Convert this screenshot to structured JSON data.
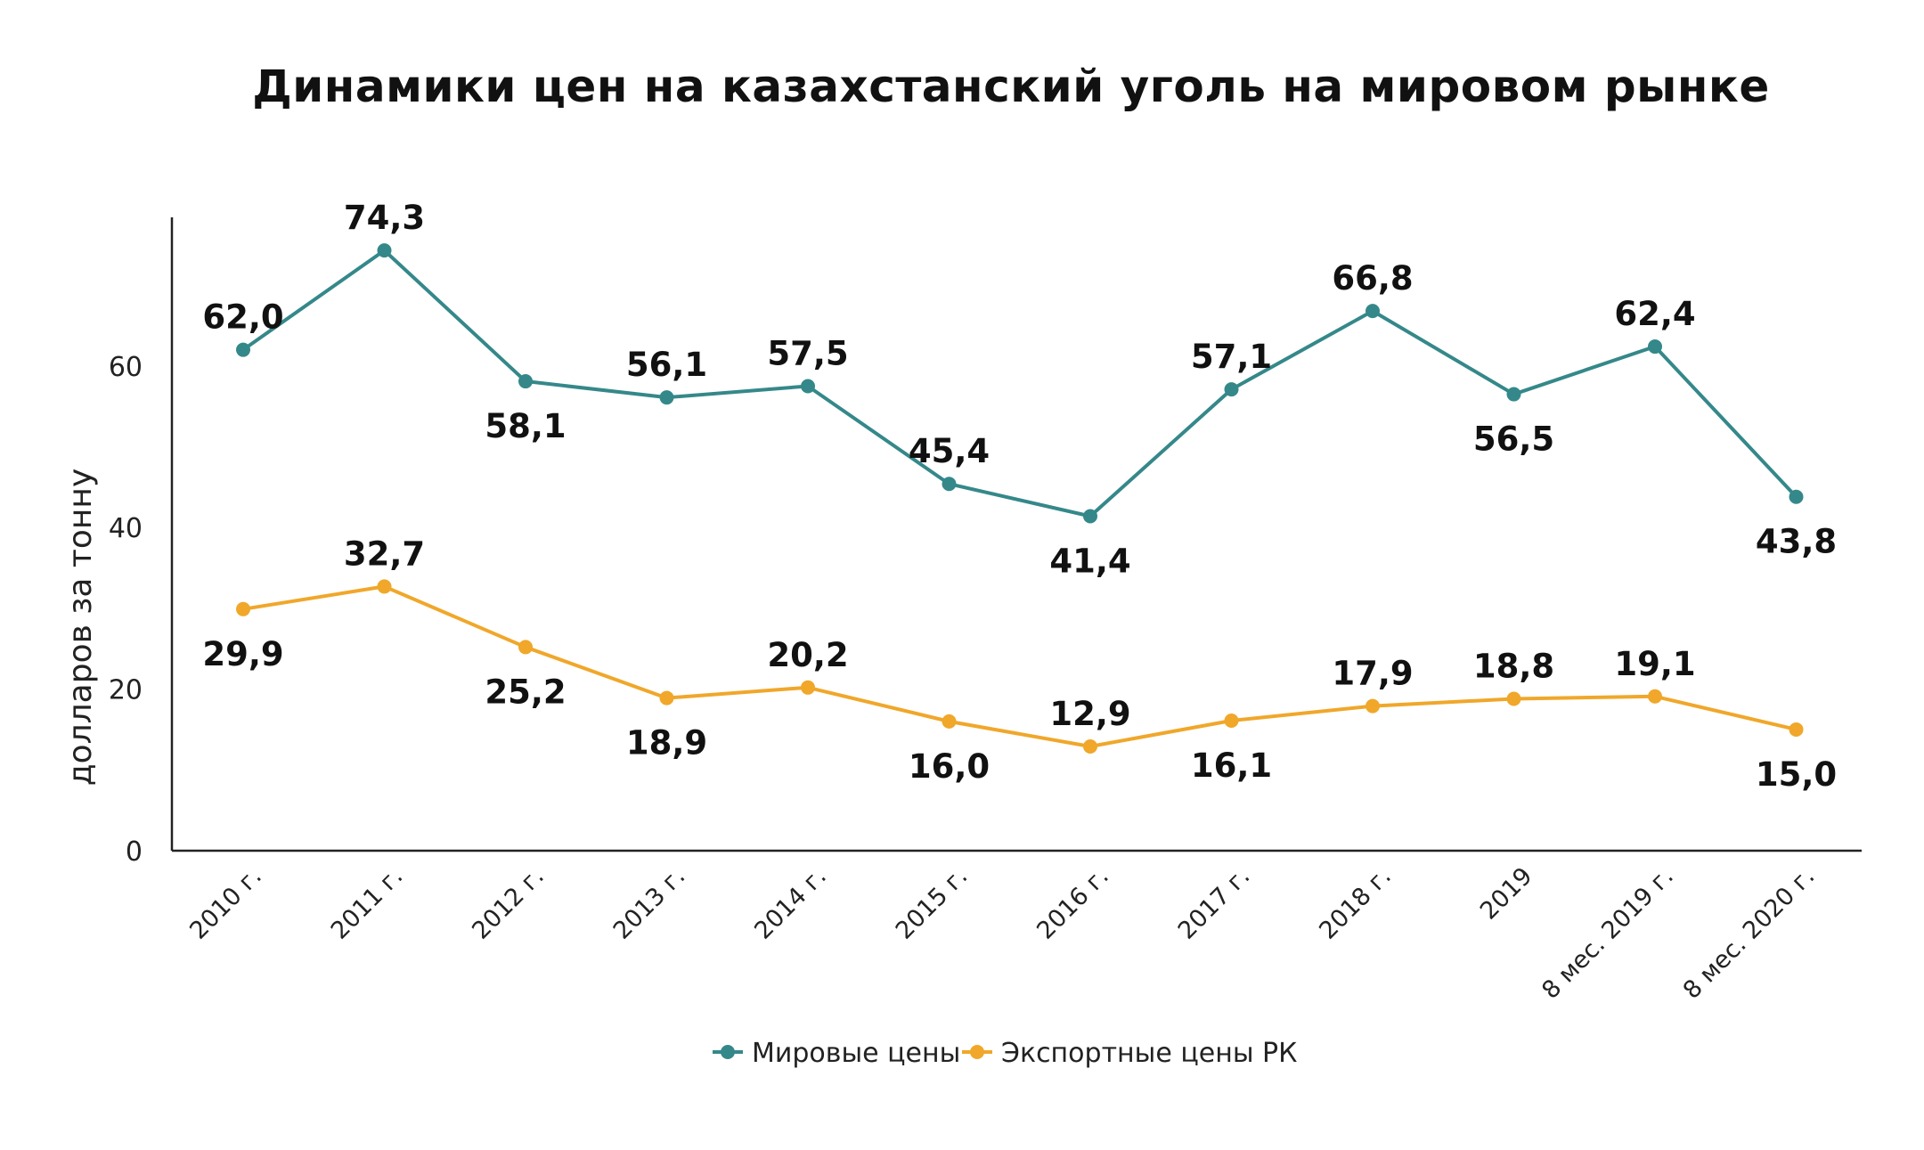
{
  "chart_data": {
    "type": "line",
    "title": "Динамики цен на казахстанский уголь на мировом рынке",
    "ylabel": "долларов за тонну",
    "xlabel": "",
    "ylim": [
      0,
      78
    ],
    "yticks": [
      0,
      20,
      40,
      60
    ],
    "grid": false,
    "legend_position": "bottom",
    "categories": [
      "2010 г.",
      "2011 г.",
      "2012 г.",
      "2013 г.",
      "2014 г.",
      "2015 г.",
      "2016 г.",
      "2017 г.",
      "2018 г.",
      "2019",
      "8 мес. 2019 г.",
      "8 мес. 2020 г."
    ],
    "series": [
      {
        "name": "Мировые цены",
        "color": "#35888a",
        "values": [
          62.0,
          74.3,
          58.1,
          56.1,
          57.5,
          45.4,
          41.4,
          57.1,
          66.8,
          56.5,
          62.4,
          43.8
        ],
        "labels": [
          "62,0",
          "74,3",
          "58,1",
          "56,1",
          "57,5",
          "45,4",
          "41,4",
          "57,1",
          "66,8",
          "56,5",
          "62,4",
          "43,8"
        ],
        "label_pos": [
          "above",
          "above",
          "below",
          "above",
          "above",
          "above",
          "below",
          "above",
          "above",
          "below",
          "above",
          "below"
        ]
      },
      {
        "name": "Экспортные цены РК",
        "color": "#f0a72a",
        "values": [
          29.9,
          32.7,
          25.2,
          18.9,
          20.2,
          16.0,
          12.9,
          16.1,
          17.9,
          18.8,
          19.1,
          15.0
        ],
        "labels": [
          "29,9",
          "32,7",
          "25,2",
          "18,9",
          "20,2",
          "16,0",
          "12,9",
          "16,1",
          "17,9",
          "18,8",
          "19,1",
          "15,0"
        ],
        "label_pos": [
          "below",
          "above",
          "below",
          "below",
          "above",
          "below",
          "above",
          "below",
          "above",
          "above",
          "above",
          "below"
        ]
      }
    ]
  }
}
